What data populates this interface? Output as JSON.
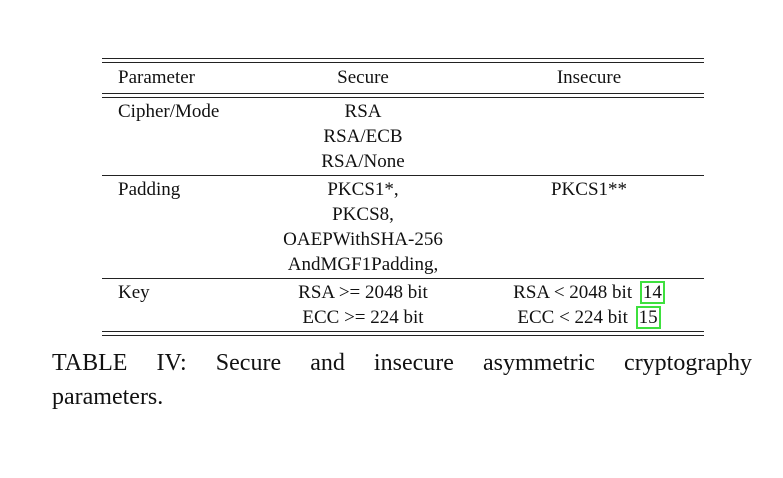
{
  "table": {
    "headers": [
      "Parameter",
      "Secure",
      "Insecure"
    ],
    "rows": [
      {
        "parameter": "Cipher/Mode",
        "secure": [
          "RSA",
          "RSA/ECB",
          "RSA/None"
        ],
        "insecure": []
      },
      {
        "parameter": "Padding",
        "secure": [
          "PKCS1*,",
          "PKCS8,",
          "OAEPWithSHA-256",
          "AndMGF1Padding,"
        ],
        "insecure": [
          "PKCS1**"
        ]
      },
      {
        "parameter": "Key",
        "secure": [
          "RSA >= 2048 bit",
          "ECC >= 224 bit"
        ],
        "insecure": [
          {
            "text": "RSA < 2048 bit",
            "ref": "14"
          },
          {
            "text": "ECC < 224 bit",
            "ref": "15"
          }
        ]
      }
    ]
  },
  "caption": {
    "line1": "TABLE IV: Secure and insecure asymmetric cryptography",
    "line2": "parameters."
  },
  "colors": {
    "citation_box": "#3ee03e",
    "rule": "#222222"
  }
}
